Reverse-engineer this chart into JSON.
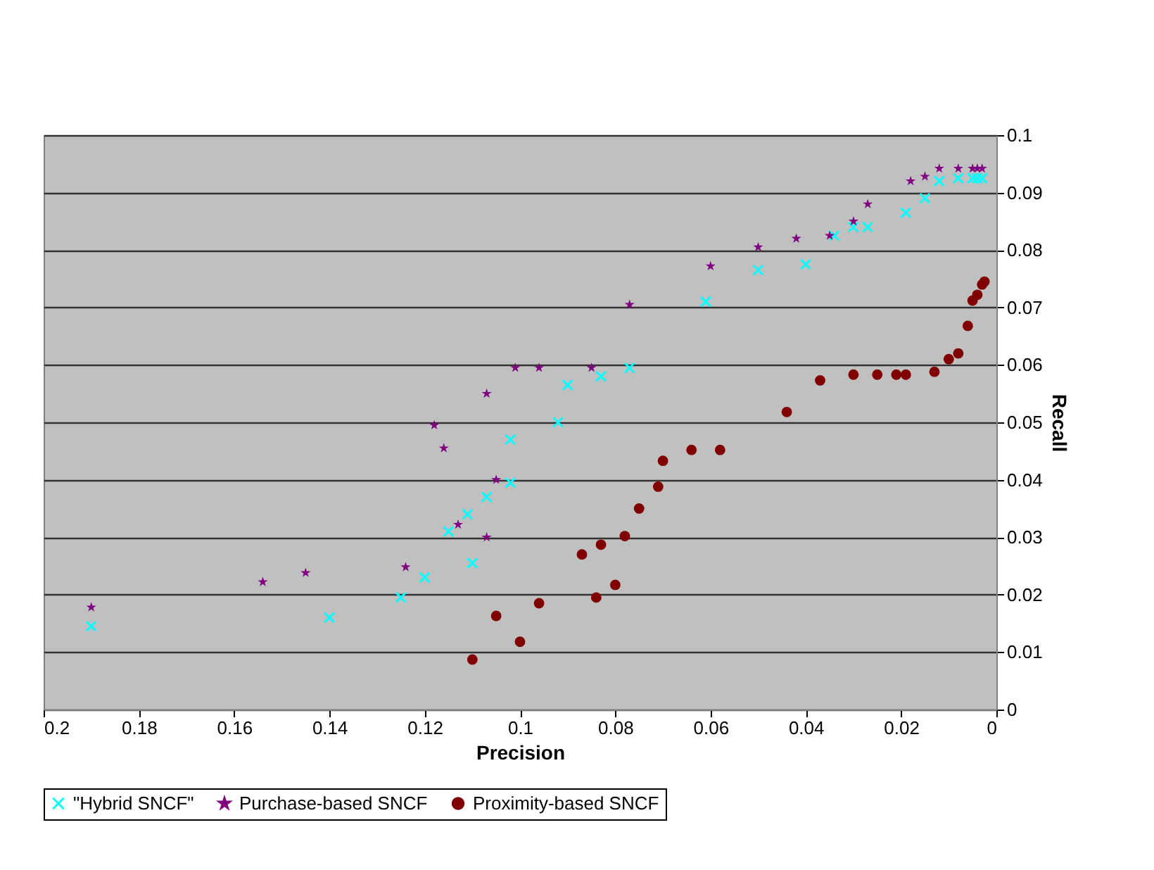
{
  "chart_data": {
    "type": "scatter",
    "xlabel": "Precision",
    "ylabel": "Recall",
    "xlim": [
      0.2,
      0
    ],
    "xticks": [
      0.2,
      0.18,
      0.16,
      0.14,
      0.12,
      0.1,
      0.08,
      0.06,
      0.04,
      0.02,
      0
    ],
    "ylim": [
      0,
      0.1
    ],
    "yticks": [
      0,
      0.01,
      0.02,
      0.03,
      0.04,
      0.05,
      0.06,
      0.07,
      0.08,
      0.09,
      0.1
    ],
    "grid": "y",
    "legend": "bottom",
    "series": [
      {
        "name": "\"Hybrid SNCF\"",
        "color": "#00ffff",
        "marker": "cross",
        "x": [
          0.19,
          0.14,
          0.125,
          0.12,
          0.11,
          0.115,
          0.111,
          0.107,
          0.102,
          0.102,
          0.092,
          0.09,
          0.083,
          0.077,
          0.061,
          0.05,
          0.04,
          0.034,
          0.03,
          0.027,
          0.019,
          0.015,
          0.012,
          0.008,
          0.005,
          0.004,
          0.003
        ],
        "values": [
          0.0145,
          0.016,
          0.0195,
          0.023,
          0.0255,
          0.031,
          0.034,
          0.037,
          0.0395,
          0.047,
          0.05,
          0.0565,
          0.058,
          0.0595,
          0.071,
          0.0765,
          0.0775,
          0.0825,
          0.084,
          0.084,
          0.0865,
          0.089,
          0.092,
          0.0925,
          0.0925,
          0.0925,
          0.0925
        ]
      },
      {
        "name": "Purchase-based SNCF",
        "color": "#800080",
        "marker": "star",
        "x": [
          0.19,
          0.154,
          0.145,
          0.124,
          0.113,
          0.107,
          0.105,
          0.118,
          0.116,
          0.107,
          0.101,
          0.096,
          0.085,
          0.077,
          0.06,
          0.05,
          0.042,
          0.035,
          0.03,
          0.027,
          0.018,
          0.015,
          0.012,
          0.008,
          0.005,
          0.004,
          0.003
        ],
        "values": [
          0.0178,
          0.0222,
          0.0238,
          0.0248,
          0.0322,
          0.03,
          0.04,
          0.0495,
          0.0455,
          0.055,
          0.0595,
          0.0595,
          0.0595,
          0.0705,
          0.0772,
          0.0805,
          0.082,
          0.0825,
          0.085,
          0.088,
          0.092,
          0.0928,
          0.0942,
          0.0942,
          0.0942,
          0.0942,
          0.0942
        ]
      },
      {
        "name": "Proximity-based SNCF",
        "color": "#800000",
        "marker": "circle",
        "x": [
          0.11,
          0.105,
          0.1,
          0.096,
          0.087,
          0.084,
          0.083,
          0.08,
          0.078,
          0.075,
          0.071,
          0.07,
          0.064,
          0.058,
          0.044,
          0.037,
          0.03,
          0.025,
          0.021,
          0.019,
          0.013,
          0.01,
          0.008,
          0.006,
          0.005,
          0.004,
          0.003,
          0.0025
        ],
        "values": [
          0.0087,
          0.0163,
          0.0118,
          0.0185,
          0.027,
          0.0195,
          0.0287,
          0.0217,
          0.0302,
          0.035,
          0.0388,
          0.0433,
          0.0452,
          0.0452,
          0.0518,
          0.0573,
          0.0583,
          0.0583,
          0.0583,
          0.0583,
          0.0588,
          0.061,
          0.062,
          0.0668,
          0.0712,
          0.0722,
          0.074,
          0.0745
        ]
      }
    ]
  }
}
